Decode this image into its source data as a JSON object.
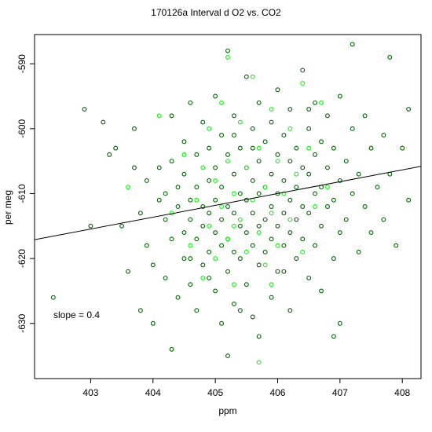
{
  "chart_data": {
    "type": "scatter",
    "title": "170126a   Interval d O2 vs. CO2",
    "xlabel": "ppm",
    "ylabel": "per meg",
    "xlim": [
      402.1,
      408.3
    ],
    "ylim": [
      -638.5,
      -585.5
    ],
    "x_ticks": [
      403,
      404,
      405,
      406,
      407,
      408
    ],
    "y_ticks": [
      -590,
      -600,
      -610,
      -620,
      -630
    ],
    "grid": false,
    "regression": {
      "slope": 0.4,
      "x": [
        402.1,
        408.3
      ],
      "y": [
        -617.1,
        -605.8
      ]
    },
    "annotation": "slope =  0.4",
    "series": [
      {
        "color": "#006400",
        "marker": "open-circle",
        "points": [
          [
            402.4,
            -626
          ],
          [
            402.9,
            -597
          ],
          [
            403.0,
            -615
          ],
          [
            403.2,
            -599
          ],
          [
            403.3,
            -604
          ],
          [
            403.4,
            -603
          ],
          [
            403.5,
            -615
          ],
          [
            403.6,
            -622
          ],
          [
            403.7,
            -600
          ],
          [
            403.7,
            -606
          ],
          [
            403.8,
            -613
          ],
          [
            403.8,
            -628
          ],
          [
            403.9,
            -608
          ],
          [
            403.9,
            -618
          ],
          [
            404.0,
            -621
          ],
          [
            404.0,
            -630
          ],
          [
            404.1,
            -606
          ],
          [
            404.1,
            -611
          ],
          [
            404.2,
            -614
          ],
          [
            404.2,
            -623
          ],
          [
            404.3,
            -598
          ],
          [
            404.3,
            -605
          ],
          [
            404.3,
            -617
          ],
          [
            404.4,
            -609
          ],
          [
            404.4,
            -612
          ],
          [
            404.4,
            -626
          ],
          [
            404.5,
            -602
          ],
          [
            404.5,
            -607
          ],
          [
            404.5,
            -616
          ],
          [
            404.5,
            -620
          ],
          [
            404.6,
            -596
          ],
          [
            404.6,
            -611
          ],
          [
            404.6,
            -614
          ],
          [
            404.6,
            -624
          ],
          [
            404.7,
            -604
          ],
          [
            404.7,
            -609
          ],
          [
            404.7,
            -617
          ],
          [
            404.7,
            -628
          ],
          [
            404.8,
            -599
          ],
          [
            404.8,
            -612
          ],
          [
            404.8,
            -615
          ],
          [
            404.8,
            -621
          ],
          [
            404.9,
            -603
          ],
          [
            404.9,
            -608
          ],
          [
            404.9,
            -613
          ],
          [
            404.9,
            -619
          ],
          [
            405.0,
            -595
          ],
          [
            405.0,
            -606
          ],
          [
            405.0,
            -611
          ],
          [
            405.0,
            -616
          ],
          [
            405.0,
            -625
          ],
          [
            405.1,
            -601
          ],
          [
            405.1,
            -609
          ],
          [
            405.1,
            -614
          ],
          [
            405.1,
            -618
          ],
          [
            405.1,
            -630
          ],
          [
            405.2,
            -588
          ],
          [
            405.2,
            -604
          ],
          [
            405.2,
            -612
          ],
          [
            405.2,
            -617
          ],
          [
            405.2,
            -622
          ],
          [
            405.3,
            -598
          ],
          [
            405.3,
            -607
          ],
          [
            405.3,
            -613
          ],
          [
            405.3,
            -619
          ],
          [
            405.3,
            -627
          ],
          [
            405.4,
            -603
          ],
          [
            405.4,
            -610
          ],
          [
            405.4,
            -615
          ],
          [
            405.4,
            -620
          ],
          [
            405.5,
            -592
          ],
          [
            405.5,
            -606
          ],
          [
            405.5,
            -611
          ],
          [
            405.5,
            -616
          ],
          [
            405.5,
            -624
          ],
          [
            405.6,
            -600
          ],
          [
            405.6,
            -608
          ],
          [
            405.6,
            -613
          ],
          [
            405.6,
            -618
          ],
          [
            405.6,
            -629
          ],
          [
            405.7,
            -596
          ],
          [
            405.7,
            -605
          ],
          [
            405.7,
            -610
          ],
          [
            405.7,
            -615
          ],
          [
            405.7,
            -621
          ],
          [
            405.8,
            -602
          ],
          [
            405.8,
            -609
          ],
          [
            405.8,
            -614
          ],
          [
            405.8,
            -619
          ],
          [
            405.9,
            -599
          ],
          [
            405.9,
            -607
          ],
          [
            405.9,
            -612
          ],
          [
            405.9,
            -617
          ],
          [
            405.9,
            -626
          ],
          [
            406.0,
            -594
          ],
          [
            406.0,
            -604
          ],
          [
            406.0,
            -610
          ],
          [
            406.0,
            -615
          ],
          [
            406.0,
            -622
          ],
          [
            406.1,
            -601
          ],
          [
            406.1,
            -608
          ],
          [
            406.1,
            -613
          ],
          [
            406.1,
            -618
          ],
          [
            406.2,
            -597
          ],
          [
            406.2,
            -605
          ],
          [
            406.2,
            -611
          ],
          [
            406.2,
            -616
          ],
          [
            406.2,
            -628
          ],
          [
            406.3,
            -603
          ],
          [
            406.3,
            -609
          ],
          [
            406.3,
            -614
          ],
          [
            406.3,
            -620
          ],
          [
            406.4,
            -591
          ],
          [
            406.4,
            -606
          ],
          [
            406.4,
            -612
          ],
          [
            406.4,
            -617
          ],
          [
            406.5,
            -600
          ],
          [
            406.5,
            -607
          ],
          [
            406.5,
            -613
          ],
          [
            406.5,
            -623
          ],
          [
            406.6,
            -596
          ],
          [
            406.6,
            -604
          ],
          [
            406.6,
            -610
          ],
          [
            406.6,
            -618
          ],
          [
            406.7,
            -602
          ],
          [
            406.7,
            -609
          ],
          [
            406.7,
            -615
          ],
          [
            406.7,
            -625
          ],
          [
            406.8,
            -598
          ],
          [
            406.8,
            -606
          ],
          [
            406.8,
            -612
          ],
          [
            406.9,
            -603
          ],
          [
            406.9,
            -611
          ],
          [
            406.9,
            -620
          ],
          [
            407.0,
            -595
          ],
          [
            407.0,
            -608
          ],
          [
            407.0,
            -616
          ],
          [
            407.0,
            -630
          ],
          [
            407.1,
            -605
          ],
          [
            407.1,
            -614
          ],
          [
            407.2,
            -587
          ],
          [
            407.2,
            -600
          ],
          [
            407.2,
            -610
          ],
          [
            407.3,
            -607
          ],
          [
            407.3,
            -619
          ],
          [
            407.4,
            -598
          ],
          [
            407.4,
            -612
          ],
          [
            407.5,
            -603
          ],
          [
            407.5,
            -616
          ],
          [
            407.6,
            -609
          ],
          [
            407.7,
            -601
          ],
          [
            407.7,
            -614
          ],
          [
            407.8,
            -589
          ],
          [
            407.8,
            -607
          ],
          [
            407.9,
            -618
          ],
          [
            408.0,
            -603
          ],
          [
            408.1,
            -597
          ],
          [
            408.1,
            -611
          ],
          [
            404.2,
            -610
          ],
          [
            404.9,
            -623
          ],
          [
            405.3,
            -601
          ],
          [
            405.6,
            -603
          ],
          [
            406.1,
            -622
          ],
          [
            405.4,
            -628
          ],
          [
            404.6,
            -620
          ],
          [
            406.5,
            -597
          ],
          [
            405.2,
            -635
          ],
          [
            405.7,
            -632
          ],
          [
            404.3,
            -634
          ],
          [
            406.9,
            -632
          ]
        ]
      },
      {
        "color": "#00ff00",
        "marker": "open-circle",
        "points": [
          [
            403.6,
            -609
          ],
          [
            404.1,
            -598
          ],
          [
            404.3,
            -613
          ],
          [
            404.5,
            -604
          ],
          [
            404.6,
            -618
          ],
          [
            404.7,
            -611
          ],
          [
            404.8,
            -623
          ],
          [
            404.9,
            -600
          ],
          [
            404.9,
            -615
          ],
          [
            405.0,
            -608
          ],
          [
            405.0,
            -620
          ],
          [
            405.1,
            -596
          ],
          [
            405.1,
            -612
          ],
          [
            405.2,
            -589
          ],
          [
            405.2,
            -605
          ],
          [
            405.2,
            -617
          ],
          [
            405.3,
            -610
          ],
          [
            405.3,
            -624
          ],
          [
            405.4,
            -599
          ],
          [
            405.4,
            -614
          ],
          [
            405.5,
            -606
          ],
          [
            405.5,
            -619
          ],
          [
            405.6,
            -592
          ],
          [
            405.6,
            -611
          ],
          [
            405.7,
            -603
          ],
          [
            405.7,
            -616
          ],
          [
            405.8,
            -609
          ],
          [
            405.8,
            -621
          ],
          [
            405.9,
            -597
          ],
          [
            405.9,
            -613
          ],
          [
            406.0,
            -605
          ],
          [
            406.0,
            -618
          ],
          [
            406.1,
            -610
          ],
          [
            406.2,
            -600
          ],
          [
            406.2,
            -614
          ],
          [
            406.3,
            -607
          ],
          [
            406.4,
            -619
          ],
          [
            406.5,
            -603
          ],
          [
            406.6,
            -612
          ],
          [
            406.7,
            -596
          ],
          [
            406.8,
            -609
          ],
          [
            405.7,
            -636
          ],
          [
            405.3,
            -615
          ],
          [
            404.8,
            -606
          ],
          [
            405.9,
            -624
          ],
          [
            406.4,
            -593
          ]
        ]
      }
    ]
  }
}
